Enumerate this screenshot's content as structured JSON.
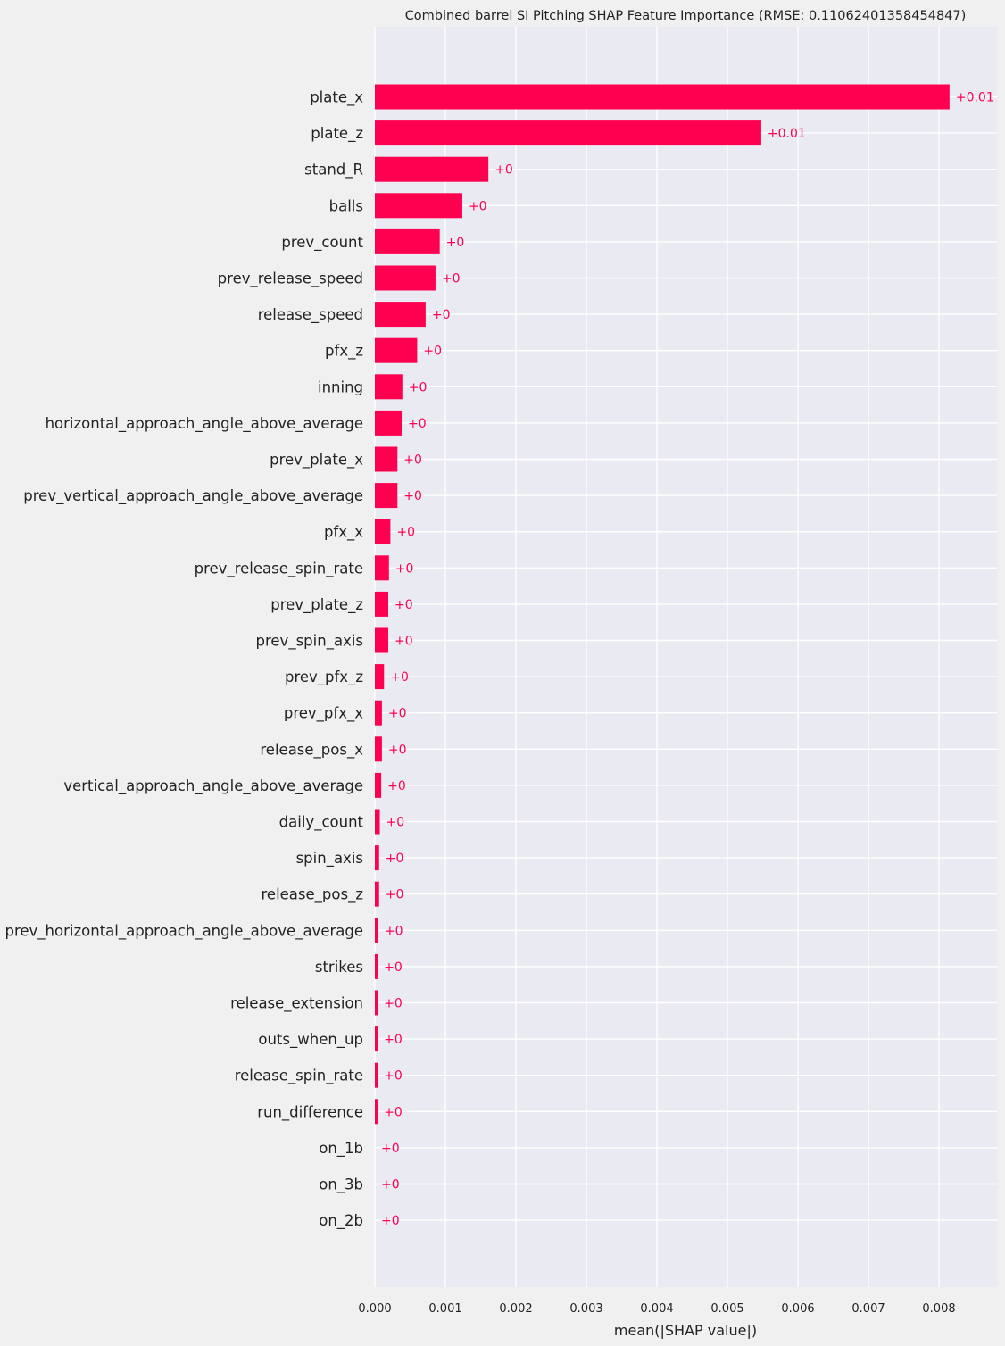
{
  "chart_data": {
    "type": "bar",
    "orientation": "horizontal",
    "title": "Combined barrel SI Pitching SHAP Feature Importance (RMSE: 0.11062401358454847)",
    "xlabel": "mean(|SHAP value|)",
    "ylabel": "",
    "xlim": [
      0,
      0.00898
    ],
    "xticks": [
      "0.000",
      "0.001",
      "0.002",
      "0.003",
      "0.004",
      "0.005",
      "0.006",
      "0.007",
      "0.008"
    ],
    "grid": true,
    "bar_color": "#ff0051",
    "background_color": "#eaeaf2",
    "categories": [
      "plate_x",
      "plate_z",
      "stand_R",
      "balls",
      "prev_count",
      "prev_release_speed",
      "release_speed",
      "pfx_z",
      "inning",
      "horizontal_approach_angle_above_average",
      "prev_plate_x",
      "prev_vertical_approach_angle_above_average",
      "pfx_x",
      "prev_release_spin_rate",
      "prev_plate_z",
      "prev_spin_axis",
      "prev_pfx_z",
      "prev_pfx_x",
      "release_pos_x",
      "vertical_approach_angle_above_average",
      "daily_count",
      "spin_axis",
      "release_pos_z",
      "prev_horizontal_approach_angle_above_average",
      "strikes",
      "release_extension",
      "outs_when_up",
      "release_spin_rate",
      "run_difference",
      "on_1b",
      "on_3b",
      "on_2b"
    ],
    "values": [
      0.00815,
      0.00548,
      0.00161,
      0.00124,
      0.00092,
      0.00086,
      0.00072,
      0.0006,
      0.00039,
      0.00038,
      0.00032,
      0.00032,
      0.00022,
      0.0002,
      0.00019,
      0.00019,
      0.00013,
      0.0001,
      0.0001,
      9e-05,
      7e-05,
      6e-05,
      6e-05,
      5e-05,
      4e-05,
      4e-05,
      4e-05,
      4e-05,
      4e-05,
      0.0,
      0.0,
      0.0
    ],
    "value_labels": [
      "+0.01",
      "+0.01",
      "+0",
      "+0",
      "+0",
      "+0",
      "+0",
      "+0",
      "+0",
      "+0",
      "+0",
      "+0",
      "+0",
      "+0",
      "+0",
      "+0",
      "+0",
      "+0",
      "+0",
      "+0",
      "+0",
      "+0",
      "+0",
      "+0",
      "+0",
      "+0",
      "+0",
      "+0",
      "+0",
      "+0",
      "+0",
      "+0"
    ]
  }
}
